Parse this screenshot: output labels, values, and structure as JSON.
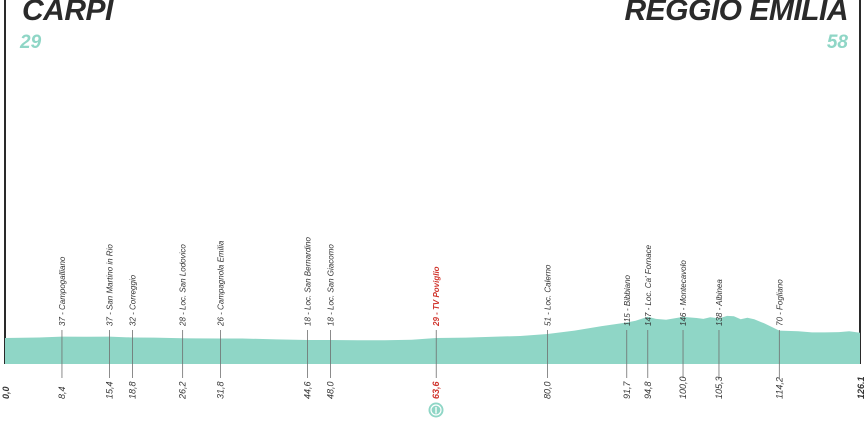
{
  "start": {
    "name": "CARPI",
    "altitude": "29"
  },
  "finish": {
    "name": "REGGIO EMILIA",
    "altitude": "58"
  },
  "colors": {
    "profile": "#8fd6c6",
    "axis": "#2a2a2a",
    "sprint": "#d0342c",
    "marker": "#8fd6c6"
  },
  "sprint_marker": {
    "icon": "sprint-flag-icon",
    "label": "I"
  },
  "chart_data": {
    "type": "area",
    "title": "",
    "xlabel": "",
    "ylabel": "",
    "xlim": [
      0,
      126.1
    ],
    "x_tick_labels": [
      "0,0",
      "126,1"
    ],
    "profile": [
      [
        0,
        29
      ],
      [
        5,
        32
      ],
      [
        8.4,
        37
      ],
      [
        12,
        36
      ],
      [
        15.4,
        37
      ],
      [
        18.8,
        32
      ],
      [
        22,
        31
      ],
      [
        26.2,
        28
      ],
      [
        28,
        27
      ],
      [
        31.8,
        26
      ],
      [
        35,
        26
      ],
      [
        40,
        21
      ],
      [
        44.6,
        18
      ],
      [
        48,
        18
      ],
      [
        52,
        17
      ],
      [
        56,
        16
      ],
      [
        60,
        19
      ],
      [
        63.6,
        29
      ],
      [
        68,
        31
      ],
      [
        72,
        36
      ],
      [
        76,
        40
      ],
      [
        80,
        51
      ],
      [
        84,
        70
      ],
      [
        88,
        95
      ],
      [
        91.7,
        115
      ],
      [
        93,
        125
      ],
      [
        94.8,
        147
      ],
      [
        96,
        135
      ],
      [
        97.5,
        130
      ],
      [
        100,
        146
      ],
      [
        102,
        140
      ],
      [
        103,
        135
      ],
      [
        104,
        144
      ],
      [
        105.3,
        138
      ],
      [
        106.5,
        152
      ],
      [
        107.5,
        150
      ],
      [
        108.5,
        133
      ],
      [
        109.5,
        142
      ],
      [
        110.5,
        133
      ],
      [
        112,
        110
      ],
      [
        114.2,
        70
      ],
      [
        117,
        66
      ],
      [
        119,
        60
      ],
      [
        121,
        60
      ],
      [
        123,
        62
      ],
      [
        124.5,
        66
      ],
      [
        126.1,
        58
      ]
    ],
    "points": [
      {
        "km": 8.4,
        "km_label": "8,4",
        "label": "37 - Campogalliano",
        "sprint": false
      },
      {
        "km": 15.4,
        "km_label": "15,4",
        "label": "37 - San Martino in Rio",
        "sprint": false
      },
      {
        "km": 18.8,
        "km_label": "18,8",
        "label": "32 - Correggio",
        "sprint": false
      },
      {
        "km": 26.2,
        "km_label": "26,2",
        "label": "28 - Loc. San Lodovico",
        "sprint": false
      },
      {
        "km": 31.8,
        "km_label": "31,8",
        "label": "26 - Campagnola Emilia",
        "sprint": false
      },
      {
        "km": 44.6,
        "km_label": "44,6",
        "label": "18 - Loc. San Bernardino",
        "sprint": false
      },
      {
        "km": 48.0,
        "km_label": "48,0",
        "label": "18 - Loc. San Giacomo",
        "sprint": false
      },
      {
        "km": 63.6,
        "km_label": "63,6",
        "label": "29 - TV Poviglio",
        "sprint": true
      },
      {
        "km": 80.0,
        "km_label": "80,0",
        "label": "51 - Loc. Calerno",
        "sprint": false
      },
      {
        "km": 91.7,
        "km_label": "91,7",
        "label": "115 - Bibbiano",
        "sprint": false
      },
      {
        "km": 94.8,
        "km_label": "94,8",
        "label": "147 - Loc. Ca' Fornace",
        "sprint": false
      },
      {
        "km": 100.0,
        "km_label": "100,0",
        "label": "146 - Montecavolo",
        "sprint": false
      },
      {
        "km": 105.3,
        "km_label": "105,3",
        "label": "138 - Albinea",
        "sprint": false
      },
      {
        "km": 114.2,
        "km_label": "114,2",
        "label": "70 - Fogliano",
        "sprint": false
      }
    ]
  }
}
